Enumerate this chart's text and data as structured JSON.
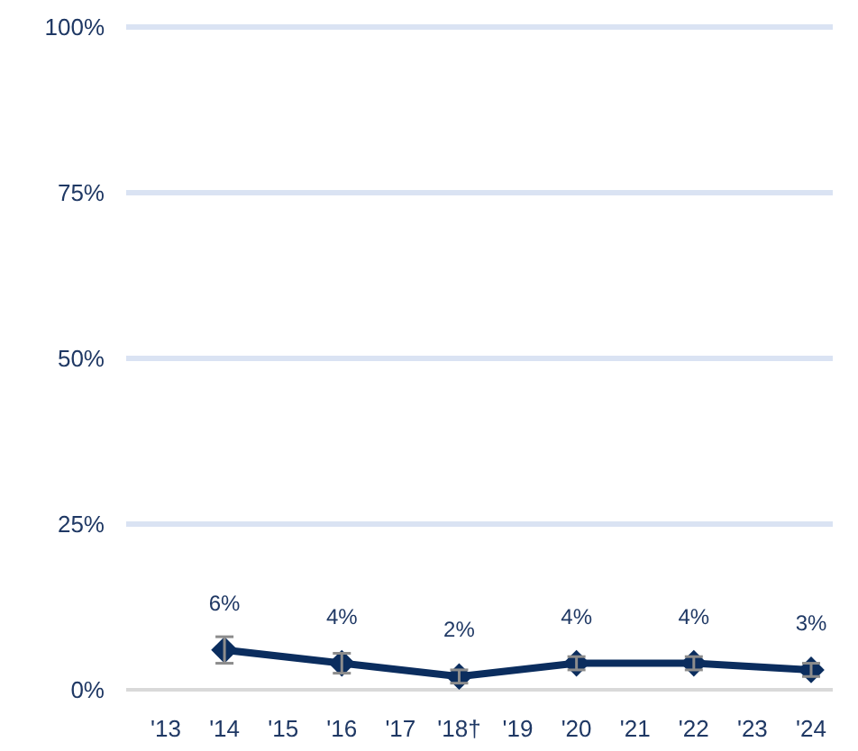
{
  "chart_data": {
    "type": "line",
    "categories": [
      "'13",
      "'14",
      "'15",
      "'16",
      "'17",
      "'18†",
      "'19",
      "'20",
      "'21",
      "'22",
      "'23",
      "'24"
    ],
    "series": [
      {
        "color": "#0b2d5e",
        "values": [
          null,
          6,
          null,
          4,
          null,
          2,
          null,
          4,
          null,
          4,
          null,
          3
        ],
        "value_labels": [
          null,
          "6%",
          null,
          "4%",
          null,
          "2%",
          null,
          "4%",
          null,
          "4%",
          null,
          "3%"
        ],
        "errors": [
          null,
          2,
          null,
          1.5,
          null,
          1,
          null,
          1,
          null,
          1,
          null,
          1
        ]
      }
    ],
    "ylim": [
      0,
      100
    ],
    "yticks": [
      {
        "value": 0,
        "label": "0%"
      },
      {
        "value": 25,
        "label": "25%"
      },
      {
        "value": 50,
        "label": "50%"
      },
      {
        "value": 75,
        "label": "75%"
      },
      {
        "value": 100,
        "label": "100%"
      }
    ],
    "grid": "y",
    "marker": "diamond",
    "line_style": "solid"
  }
}
